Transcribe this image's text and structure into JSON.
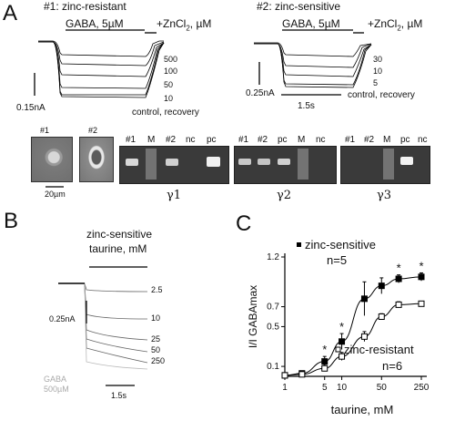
{
  "panel_a": {
    "letter": "A",
    "cell1": {
      "title": "#1:  zinc-resistant",
      "drug": "GABA, 5µM",
      "cotreat": "+ZnCl",
      "cotreat_sub": "2",
      "cotreat_unit": ", µM",
      "concs": [
        "500",
        "100",
        "50",
        "10"
      ],
      "control": "control, recovery",
      "scale_y": "0.15nA"
    },
    "cell2": {
      "title": "#2:  zinc-sensitive",
      "drug": "GABA, 5µM",
      "cotreat": "+ZnCl",
      "cotreat_sub": "2",
      "cotreat_unit": ", µM",
      "concs": [
        "30",
        "10",
        "5"
      ],
      "control": "control, recovery",
      "scale_y": "0.25nA",
      "scale_x": "1.5s"
    },
    "cell_labels": [
      "#1",
      "#2"
    ],
    "cell_scale": "20µm",
    "gels": [
      {
        "lanes": [
          "#1",
          "M",
          "#2",
          "nc",
          "pc"
        ],
        "gamma": "γ1"
      },
      {
        "lanes": [
          "#1",
          "#2",
          "pc",
          "M",
          "nc"
        ],
        "gamma": "γ2"
      },
      {
        "lanes": [
          "#1",
          "#2",
          "M",
          "pc",
          "nc"
        ],
        "gamma": "γ3"
      }
    ]
  },
  "panel_b": {
    "letter": "B",
    "title": "zinc-sensitive",
    "drug": "taurine, mM",
    "concs": [
      "2.5",
      "10",
      "25",
      "50",
      "250"
    ],
    "scale_y": "0.25nA",
    "gaba": [
      "GABA",
      "500µM"
    ],
    "scale_x": "1.5s"
  },
  "panel_c": {
    "letter": "C",
    "chart_data": {
      "type": "scatter",
      "xlabel": "taurine,  mM",
      "ylabel": "I/I GABAmax",
      "x_scale": "log",
      "xlim": [
        1,
        250
      ],
      "ylim": [
        0,
        1.2
      ],
      "x_ticks": [
        "1",
        "5",
        "10",
        "50",
        "250"
      ],
      "y_ticks": [
        "0.1",
        "0.5",
        "0.7",
        "1.2"
      ],
      "series": [
        {
          "name": "zinc-sensitive",
          "n_label": "n=5",
          "marker": "filled-square",
          "x": [
            1,
            2,
            5,
            10,
            25,
            50,
            100,
            250
          ],
          "y": [
            0.01,
            0.03,
            0.15,
            0.35,
            0.78,
            0.91,
            0.98,
            1.0
          ],
          "err": [
            0.01,
            0.02,
            0.05,
            0.08,
            0.17,
            0.08,
            0.04,
            0.04
          ]
        },
        {
          "name": "zinc-resistant",
          "n_label": "n=6",
          "marker": "open-square",
          "x": [
            1,
            2,
            5,
            10,
            25,
            50,
            100,
            250
          ],
          "y": [
            0.01,
            0.02,
            0.08,
            0.2,
            0.4,
            0.6,
            0.72,
            0.73
          ],
          "err": [
            0.01,
            0.01,
            0.03,
            0.04,
            0.05,
            0.03,
            0.03,
            0.02
          ]
        }
      ],
      "significance": {
        "symbol": "*",
        "x": [
          5,
          10,
          100,
          250
        ]
      }
    }
  }
}
